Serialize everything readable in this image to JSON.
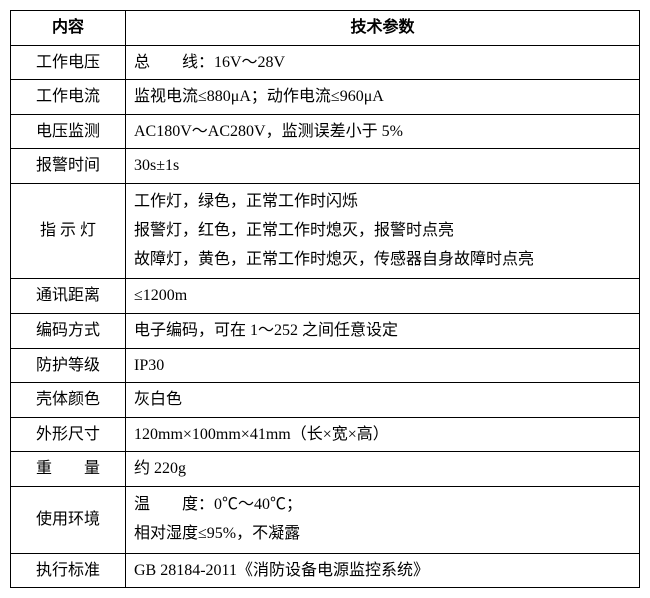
{
  "table": {
    "header": {
      "col1": "内容",
      "col2": "技术参数"
    },
    "rows": [
      {
        "label": "工作电压",
        "label_style": "center",
        "value": "总　　线：16V～28V"
      },
      {
        "label": "工作电流",
        "label_style": "center",
        "value": "监视电流≤880μA；动作电流≤960μA"
      },
      {
        "label": "电压监测",
        "label_style": "center",
        "value": "AC180V～AC280V，监测误差小于 5%"
      },
      {
        "label": "报警时间",
        "label_style": "center",
        "value": "30s±1s"
      },
      {
        "label": "指 示 灯",
        "label_style": "center",
        "value": "工作灯，绿色，正常工作时闪烁\n报警灯，红色，正常工作时熄灭，报警时点亮\n故障灯，黄色，正常工作时熄灭，传感器自身故障时点亮",
        "multiline": true
      },
      {
        "label": "通讯距离",
        "label_style": "center",
        "value": "≤1200m"
      },
      {
        "label": "编码方式",
        "label_style": "center",
        "value": "电子编码，可在 1～252 之间任意设定"
      },
      {
        "label": "防护等级",
        "label_style": "center",
        "value": "IP30"
      },
      {
        "label": "壳体颜色",
        "label_style": "center",
        "value": "灰白色"
      },
      {
        "label": "外形尺寸",
        "label_style": "center",
        "value": "120mm×100mm×41mm（长×宽×高）"
      },
      {
        "label": "重　　量",
        "label_style": "center",
        "value": "约 220g"
      },
      {
        "label": "使用环境",
        "label_style": "center",
        "value": "温　　度：0℃～40℃；\n相对湿度≤95%，不凝露",
        "multiline": true
      },
      {
        "label": "执行标准",
        "label_style": "center",
        "value": "GB 28184-2011《消防设备电源监控系统》"
      }
    ]
  }
}
